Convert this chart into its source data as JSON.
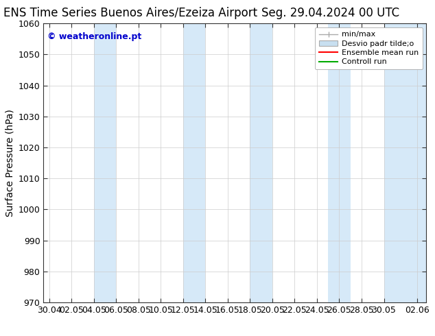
{
  "title_left": "ENS Time Series Buenos Aires/Ezeiza Airport",
  "title_right": "Seg. 29.04.2024 00 UTC",
  "ylabel": "Surface Pressure (hPa)",
  "ylim": [
    970,
    1060
  ],
  "yticks": [
    970,
    980,
    990,
    1000,
    1010,
    1020,
    1030,
    1040,
    1050,
    1060
  ],
  "xtick_labels": [
    "30.04",
    "02.05",
    "04.05",
    "06.05",
    "08.05",
    "10.05",
    "12.05",
    "14.05",
    "16.05",
    "18.05",
    "20.05",
    "22.05",
    "24.05",
    "26.05",
    "28.05",
    "30.05",
    "02.06"
  ],
  "xtick_positions": [
    0,
    2,
    4,
    6,
    8,
    10,
    12,
    14,
    16,
    18,
    20,
    22,
    24,
    26,
    28,
    30,
    33
  ],
  "xlim": [
    -0.5,
    33.8
  ],
  "watermark": "© weatheronline.pt",
  "watermark_color": "#0000cc",
  "background_color": "#ffffff",
  "plot_bg_color": "#ffffff",
  "shade_color": "#d6e9f8",
  "shade_ranges": [
    [
      4,
      6
    ],
    [
      12,
      14
    ],
    [
      18,
      20
    ],
    [
      25,
      27
    ],
    [
      30,
      33.8
    ]
  ],
  "legend_labels": [
    "min/max",
    "Desvio padr tilde;o",
    "Ensemble mean run",
    "Controll run"
  ],
  "minmax_color": "#aaaaaa",
  "std_color": "#c8dff0",
  "ensemble_color": "#ff0000",
  "control_color": "#00aa00",
  "title_fontsize": 12,
  "tick_fontsize": 9,
  "label_fontsize": 10,
  "legend_fontsize": 8
}
